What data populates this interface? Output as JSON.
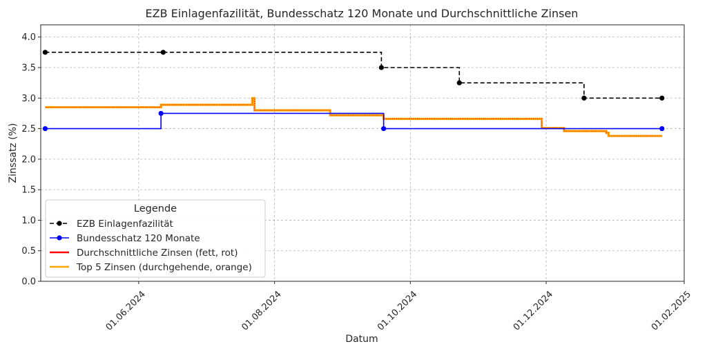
{
  "chart_data": {
    "type": "line",
    "title": "EZB Einlagenfazilität, Bundesschatz 120 Monate und Durchschnittliche Zinsen",
    "xlabel": "Datum",
    "ylabel": "Zinssatz (%)",
    "xlim": [
      "2024-04-18",
      "2025-02-01"
    ],
    "ylim": [
      0,
      4.2
    ],
    "x_ticks": [
      {
        "date": "2024-06-01",
        "label": "01.06.2024"
      },
      {
        "date": "2024-08-01",
        "label": "01.08.2024"
      },
      {
        "date": "2024-10-01",
        "label": "01.10.2024"
      },
      {
        "date": "2024-12-01",
        "label": "01.12.2024"
      },
      {
        "date": "2025-02-01",
        "label": "01.02.2025"
      }
    ],
    "y_ticks": [
      {
        "value": 0.0,
        "label": "0.0"
      },
      {
        "value": 0.5,
        "label": "0.5"
      },
      {
        "value": 1.0,
        "label": "1.0"
      },
      {
        "value": 1.5,
        "label": "1.5"
      },
      {
        "value": 2.0,
        "label": "2.0"
      },
      {
        "value": 2.5,
        "label": "2.5"
      },
      {
        "value": 3.0,
        "label": "3.0"
      },
      {
        "value": 3.5,
        "label": "3.5"
      },
      {
        "value": 4.0,
        "label": "4.0"
      }
    ],
    "grid": true,
    "legend": {
      "title": "Legende",
      "position": "lower-left",
      "entries": [
        "EZB Einlagenfazilität",
        "Bundesschatz 120 Monate",
        "Durchschnittliche Zinsen (fett, rot)",
        "Top 5 Zinsen (durchgehende, orange)"
      ]
    },
    "series": [
      {
        "name": "EZB Einlagenfazilität",
        "color": "#000000",
        "style": "dashed-step",
        "marker": "circle",
        "points": [
          {
            "x": "2024-04-20",
            "y": 3.75
          },
          {
            "x": "2024-06-12",
            "y": 3.75
          },
          {
            "x": "2024-09-18",
            "y": 3.5
          },
          {
            "x": "2024-10-23",
            "y": 3.25
          },
          {
            "x": "2024-12-18",
            "y": 3.0
          },
          {
            "x": "2025-01-22",
            "y": 3.0
          }
        ]
      },
      {
        "name": "Bundesschatz 120 Monate",
        "color": "#0000ff",
        "style": "solid-step",
        "marker": "circle",
        "points": [
          {
            "x": "2024-04-20",
            "y": 2.5
          },
          {
            "x": "2024-06-11",
            "y": 2.75
          },
          {
            "x": "2024-09-19",
            "y": 2.5
          },
          {
            "x": "2025-01-22",
            "y": 2.5
          }
        ]
      },
      {
        "name": "Durchschnittliche Zinsen (fett, rot)",
        "color": "#ff0000",
        "style": "solid-step",
        "points": [
          {
            "x": "2024-04-20",
            "y": 2.85
          },
          {
            "x": "2024-06-10",
            "y": 2.85
          },
          {
            "x": "2024-06-11",
            "y": 2.89
          },
          {
            "x": "2024-07-21",
            "y": 2.89
          },
          {
            "x": "2024-07-22",
            "y": 3.0
          },
          {
            "x": "2024-07-23",
            "y": 2.8
          },
          {
            "x": "2024-08-25",
            "y": 2.8
          },
          {
            "x": "2024-08-26",
            "y": 2.72
          },
          {
            "x": "2024-09-18",
            "y": 2.72
          },
          {
            "x": "2024-09-19",
            "y": 2.66
          },
          {
            "x": "2024-11-28",
            "y": 2.66
          },
          {
            "x": "2024-11-29",
            "y": 2.51
          },
          {
            "x": "2024-12-08",
            "y": 2.51
          },
          {
            "x": "2024-12-09",
            "y": 2.46
          },
          {
            "x": "2024-12-27",
            "y": 2.46
          },
          {
            "x": "2024-12-28",
            "y": 2.43
          },
          {
            "x": "2024-12-29",
            "y": 2.38
          },
          {
            "x": "2025-01-22",
            "y": 2.38
          }
        ]
      },
      {
        "name": "Top 5 Zinsen (durchgehende, orange)",
        "color": "#ffa500",
        "style": "solid-step",
        "points": [
          {
            "x": "2024-04-20",
            "y": 2.85
          },
          {
            "x": "2024-06-10",
            "y": 2.85
          },
          {
            "x": "2024-06-11",
            "y": 2.89
          },
          {
            "x": "2024-07-21",
            "y": 2.89
          },
          {
            "x": "2024-07-22",
            "y": 3.0
          },
          {
            "x": "2024-07-23",
            "y": 2.8
          },
          {
            "x": "2024-08-25",
            "y": 2.8
          },
          {
            "x": "2024-08-26",
            "y": 2.72
          },
          {
            "x": "2024-09-18",
            "y": 2.72
          },
          {
            "x": "2024-09-19",
            "y": 2.66
          },
          {
            "x": "2024-11-28",
            "y": 2.66
          },
          {
            "x": "2024-11-29",
            "y": 2.51
          },
          {
            "x": "2024-12-08",
            "y": 2.51
          },
          {
            "x": "2024-12-09",
            "y": 2.46
          },
          {
            "x": "2024-12-27",
            "y": 2.46
          },
          {
            "x": "2024-12-28",
            "y": 2.43
          },
          {
            "x": "2024-12-29",
            "y": 2.38
          },
          {
            "x": "2025-01-22",
            "y": 2.38
          }
        ]
      }
    ]
  }
}
